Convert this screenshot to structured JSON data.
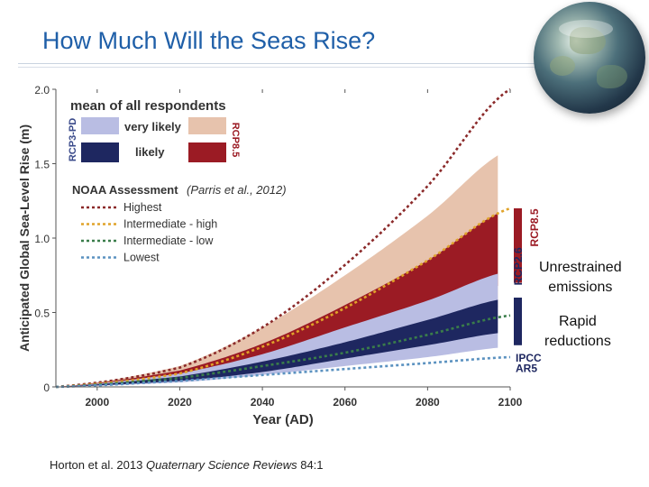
{
  "slide": {
    "title": "How Much Will the Seas Rise?",
    "citation_authors": "Horton et al. 2013 ",
    "citation_journal": "Quaternary Science Reviews",
    "citation_volume": " 84:1",
    "annotation_high": [
      "Unrestrained",
      "emissions"
    ],
    "annotation_low": [
      "Rapid",
      "reductions"
    ]
  },
  "chart_data": {
    "type": "area",
    "xlabel": "Year (AD)",
    "ylabel": "Anticipated Global Sea-Level Rise (m)",
    "xlim": [
      1990,
      2100
    ],
    "ylim": [
      0,
      2.0
    ],
    "x_ticks": [
      2000,
      2020,
      2040,
      2060,
      2080,
      2100
    ],
    "y_ticks": [
      0,
      0.5,
      1.0,
      1.5,
      2.0
    ],
    "y_tick_labels": [
      "0",
      "0.5",
      "1.0",
      "1.5",
      "2.0"
    ],
    "legend_title": "mean of all respondents",
    "legend_very_likely": "very likely",
    "legend_likely": "likely",
    "legend_rcp3": "RCP3-PD",
    "legend_rcp85": "RCP8.5",
    "noaa_title": "NOAA Assessment",
    "noaa_citation": "(Parris et al., 2012)",
    "bands": [
      {
        "name": "RCP8.5 very likely",
        "color": "#e7c3ad",
        "x": [
          1990,
          2020,
          2040,
          2060,
          2080,
          2100
        ],
        "low": [
          0,
          0.04,
          0.1,
          0.22,
          0.38,
          0.55
        ],
        "high": [
          0,
          0.14,
          0.4,
          0.75,
          1.15,
          1.6
        ]
      },
      {
        "name": "RCP8.5 likely",
        "color": "#9b1b24",
        "x": [
          1990,
          2020,
          2040,
          2060,
          2080,
          2100
        ],
        "low": [
          0,
          0.06,
          0.16,
          0.3,
          0.48,
          0.7
        ],
        "high": [
          0,
          0.11,
          0.29,
          0.55,
          0.85,
          1.2
        ]
      },
      {
        "name": "RCP3-PD very likely",
        "color": "#b9bde3",
        "x": [
          1990,
          2020,
          2040,
          2060,
          2080,
          2100
        ],
        "low": [
          0,
          0.03,
          0.08,
          0.14,
          0.2,
          0.27
        ],
        "high": [
          0,
          0.09,
          0.22,
          0.4,
          0.58,
          0.78
        ]
      },
      {
        "name": "RCP3-PD likely",
        "color": "#1e2760",
        "x": [
          1990,
          2020,
          2040,
          2060,
          2080,
          2100
        ],
        "low": [
          0,
          0.04,
          0.1,
          0.19,
          0.28,
          0.37
        ],
        "high": [
          0,
          0.07,
          0.17,
          0.3,
          0.45,
          0.6
        ]
      }
    ],
    "series": [
      {
        "name": "Highest",
        "color": "#8b2a2a",
        "x": [
          1990,
          2020,
          2040,
          2060,
          2080,
          2100
        ],
        "values": [
          0,
          0.13,
          0.4,
          0.82,
          1.35,
          2.0
        ]
      },
      {
        "name": "Intermediate - high",
        "color": "#e0a32a",
        "x": [
          1990,
          2020,
          2040,
          2060,
          2080,
          2100
        ],
        "values": [
          0,
          0.09,
          0.27,
          0.53,
          0.85,
          1.2
        ]
      },
      {
        "name": "Intermediate - low",
        "color": "#3a7d4a",
        "x": [
          1990,
          2020,
          2040,
          2060,
          2080,
          2100
        ],
        "values": [
          0,
          0.06,
          0.14,
          0.23,
          0.35,
          0.48
        ]
      },
      {
        "name": "Lowest",
        "color": "#5b92c0",
        "x": [
          1990,
          2020,
          2040,
          2060,
          2080,
          2100
        ],
        "values": [
          0,
          0.04,
          0.08,
          0.12,
          0.16,
          0.2
        ]
      }
    ],
    "side_bars": [
      {
        "label": "RCP8.5",
        "color": "#9b1b24",
        "low": 0.7,
        "high": 1.2
      },
      {
        "label": "RCP2.6",
        "color": "#1e2760",
        "low": 0.37,
        "high": 0.6
      },
      {
        "label": "IPCC AR5",
        "color": "#1e2760",
        "low": 0.28,
        "high": 0.6
      }
    ],
    "side_labels": [
      "RCP8.5",
      "RCP2.6"
    ],
    "ipcc_label": [
      "IPCC",
      "AR5"
    ]
  }
}
